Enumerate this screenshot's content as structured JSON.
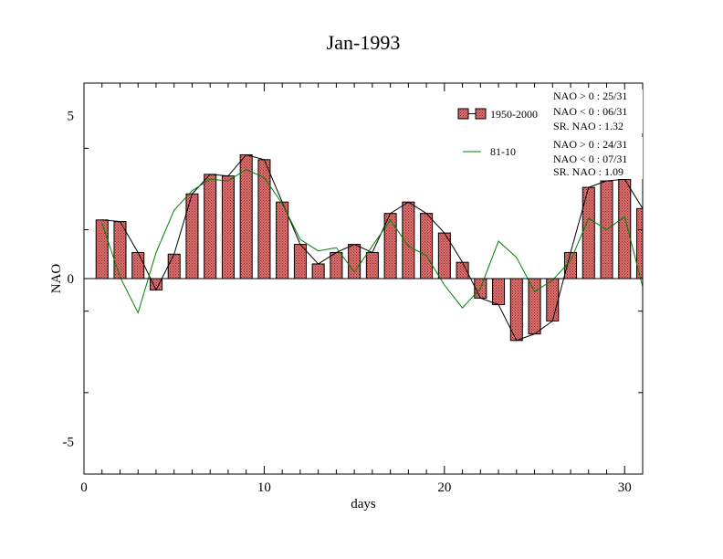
{
  "chart_data": {
    "type": "bar",
    "title": "Jan-1993",
    "xlabel": "days",
    "ylabel": "NAO",
    "xlim": [
      0,
      31
    ],
    "ylim": [
      -6,
      6
    ],
    "xticks": [
      0,
      10,
      20,
      30
    ],
    "yticks": [
      -5,
      0,
      5
    ],
    "xtick_labels": [
      "0",
      "10",
      "20",
      "30"
    ],
    "ytick_labels": [
      "-5",
      "0",
      "5"
    ],
    "grid": false,
    "legend_position": "top-right",
    "x": [
      1,
      2,
      3,
      4,
      5,
      6,
      7,
      8,
      9,
      10,
      11,
      12,
      13,
      14,
      15,
      16,
      17,
      18,
      19,
      20,
      21,
      22,
      23,
      24,
      25,
      26,
      27,
      28,
      29,
      30,
      31
    ],
    "series": [
      {
        "name": "1950-2000",
        "kind": "bar",
        "color": "#e07070",
        "values": [
          1.8,
          1.75,
          0.8,
          -0.35,
          0.75,
          2.6,
          3.2,
          3.15,
          3.8,
          3.65,
          2.35,
          1.05,
          0.45,
          0.8,
          1.05,
          0.8,
          2.0,
          2.35,
          2.0,
          1.4,
          0.5,
          -0.6,
          -0.8,
          -1.9,
          -1.7,
          -1.3,
          0.8,
          2.8,
          3.0,
          3.05,
          2.15
        ],
        "stats": [
          "NAO > 0 : 25/31",
          "NAO < 0 : 06/31",
          "SR. NAO :  1.32"
        ]
      },
      {
        "name": "81-10",
        "kind": "line",
        "color": "#008000",
        "values": [
          1.7,
          0.05,
          -1.05,
          0.8,
          2.1,
          2.7,
          3.05,
          3.0,
          3.35,
          3.1,
          2.3,
          1.2,
          0.85,
          0.95,
          0.2,
          1.0,
          1.8,
          1.0,
          0.7,
          -0.2,
          -0.9,
          -0.3,
          1.15,
          0.65,
          -0.4,
          -0.05,
          0.55,
          1.85,
          1.5,
          1.9,
          -0.25
        ],
        "stats": [
          "NAO > 0 : 24/31",
          "NAO < 0 : 07/31",
          "SR. NAO :  1.09"
        ]
      }
    ]
  }
}
